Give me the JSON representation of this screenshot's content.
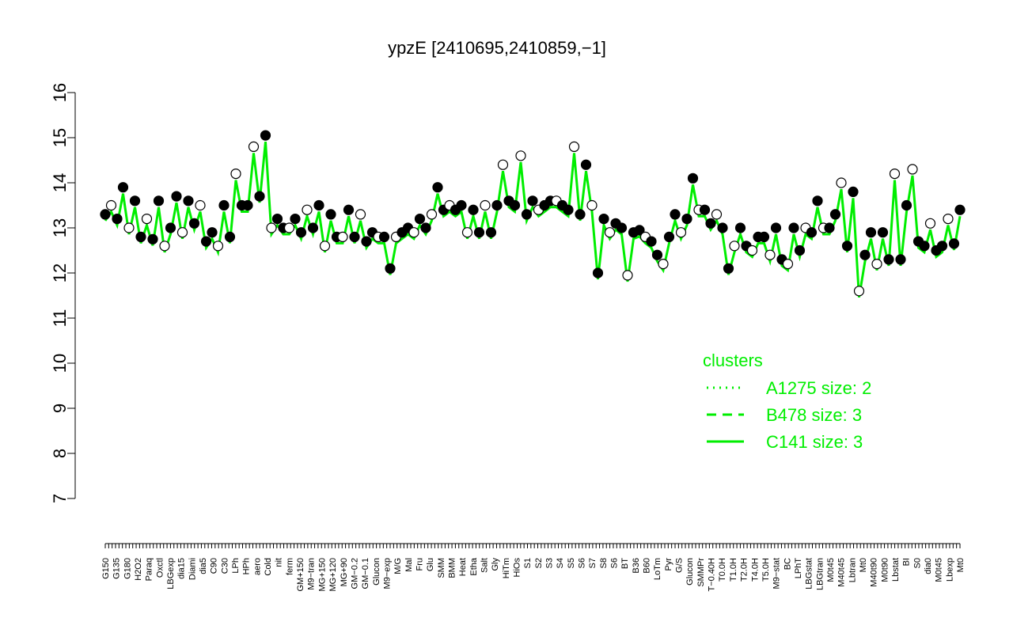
{
  "chart_data": {
    "type": "line",
    "title": "ypzE [2410695,2410859,−1]",
    "xlabel": "",
    "ylabel": "",
    "ylim": [
      7,
      16
    ],
    "yticks": [
      7,
      8,
      9,
      10,
      11,
      12,
      13,
      14,
      15,
      16
    ],
    "grid": false,
    "xtick_labels": [
      "G150",
      "G135",
      "G180",
      "H2O2",
      "Paraq",
      "Oxctl",
      "LBGexp",
      "dia15",
      "Diami",
      "dia5",
      "C90",
      "C30",
      "LPh",
      "HPh",
      "aero",
      "Cold",
      "nit",
      "ferm",
      "GM+150",
      "M9−tran",
      "MG+150",
      "MG+120",
      "MG+90",
      "GM−0.2",
      "GM−0.1",
      "Glucon",
      "M9−exp",
      "M/G",
      "Mal",
      "Fru",
      "Glu",
      "SMM",
      "BMM",
      "Heat",
      "Etha",
      "Salt",
      "Gly",
      "HiTm",
      "HiOs",
      "S1",
      "S2",
      "S3",
      "S4",
      "S5",
      "S6",
      "S7",
      "S8",
      "S6",
      "BT",
      "B36",
      "B60",
      "LoTm",
      "Pyr",
      "G/S",
      "Glucon",
      "SMMPr",
      "T−0.40H",
      "T0.0H",
      "T1.0H",
      "T2.0H",
      "T4.0H",
      "T5.0H",
      "M9−stat",
      "BC",
      "LPhT",
      "LBGstat",
      "LBGtran",
      "M0t45",
      "M40t45",
      "Lbtran",
      "Mt0",
      "M40t90",
      "M0t90",
      "Lbstat",
      "BI",
      "S0",
      "dia0",
      "M0t45",
      "Lbexp",
      "Mt0"
    ],
    "series": [
      {
        "role": "points",
        "values": [
          13.3,
          13.2,
          13.0,
          12.8,
          12.75,
          12.6,
          13.0,
          12.9,
          13.1,
          12.7,
          12.6,
          13.5,
          14.2,
          13.5,
          13.7,
          13.0,
          13.2,
          13.0,
          12.9,
          13.0,
          12.6,
          12.8,
          12.8,
          12.8,
          12.7,
          12.8,
          12.1,
          12.8,
          13.0,
          13.2,
          13.3,
          13.4,
          13.5,
          13.5,
          13.4,
          13.5,
          13.5,
          13.6,
          13.5,
          13.3,
          13.4,
          13.6,
          13.5,
          13.4,
          13.3,
          13.5,
          13.2,
          13.1,
          13.0,
          12.9,
          12.8,
          12.4,
          12.8,
          12.9,
          13.2,
          13.4,
          13.1,
          13.0,
          12.6,
          13.0,
          12.5,
          12.8,
          13.0,
          12.2,
          13.0,
          13.0,
          13.6,
          13.0,
          14.0,
          13.8,
          11.6,
          12.9,
          12.9,
          14.2,
          13.5,
          14.3,
          12.6,
          12.5,
          13.2,
          13.4
        ]
      },
      {
        "role": "points-2",
        "values": [
          13.5,
          13.9,
          13.6,
          13.2,
          13.6,
          13.7,
          13.6,
          13.5,
          12.9,
          12.8,
          13.5,
          14.8,
          15.05,
          13.0,
          13.2,
          13.4,
          13.5,
          13.3,
          13.4,
          13.3,
          12.9,
          12.8,
          12.9,
          12.9,
          13.0,
          13.9,
          13.4,
          12.9,
          12.9,
          12.9,
          14.4,
          14.6,
          13.6,
          13.5,
          13.6,
          14.8,
          14.4,
          12.0,
          12.9,
          11.95,
          12.95,
          12.7,
          12.2,
          13.3,
          14.1,
          13.4,
          13.3,
          12.1,
          12.6,
          12.8,
          12.4,
          12.3,
          12.5,
          12.9,
          13.0,
          13.3,
          12.6,
          12.4,
          12.2,
          12.3,
          12.3,
          12.7,
          13.1,
          12.6,
          12.65
        ]
      }
    ],
    "legend": {
      "title": "clusters",
      "placement": "right",
      "entries": [
        {
          "label": "A1275 size: 2",
          "style": "dotted"
        },
        {
          "label": "B478 size: 3",
          "style": "dashed"
        },
        {
          "label": "C141 size: 3",
          "style": "solid"
        }
      ]
    },
    "colors": {
      "line": "#00ee00",
      "point_filled": "#000000",
      "point_open": "#ffffff",
      "axis": "#000000"
    }
  }
}
